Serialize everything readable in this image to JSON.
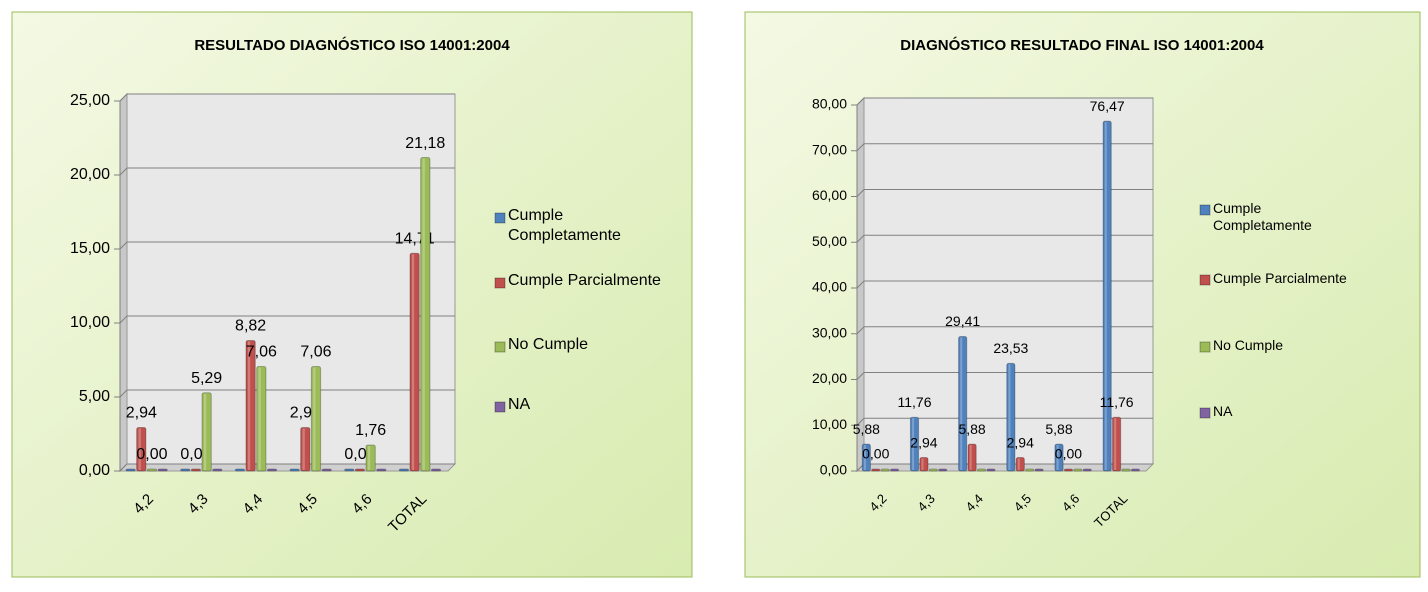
{
  "chart_data": [
    {
      "type": "bar",
      "title": "RESULTADO DIAGNÓSTICO ISO 14001:2004",
      "categories": [
        "4,2",
        "4,3",
        "4,4",
        "4,5",
        "4,6",
        "TOTAL"
      ],
      "series": [
        {
          "name": "Cumple Completamente",
          "color": "#4f81bd",
          "values": [
            0,
            0,
            0,
            0,
            0,
            0
          ]
        },
        {
          "name": "Cumple Parcialmente",
          "color": "#c0504d",
          "values": [
            2.94,
            0,
            8.82,
            2.94,
            0,
            14.71
          ],
          "value_labels": [
            "2,94",
            "0,00",
            "8,82",
            "2,94",
            "0,00",
            "14,71"
          ]
        },
        {
          "name": "No Cumple",
          "color": "#9bbb59",
          "values": [
            0,
            5.29,
            7.06,
            7.06,
            1.76,
            21.18
          ],
          "value_labels": [
            "0,00",
            "5,29",
            "7,06",
            "7,06",
            "1,76",
            "21,18"
          ]
        },
        {
          "name": "NA",
          "color": "#8064a2",
          "values": [
            0,
            0,
            0,
            0,
            0,
            0
          ]
        }
      ],
      "ylim": [
        0,
        25
      ],
      "yticks": [
        {
          "value": 0,
          "label": "0,00"
        },
        {
          "value": 5,
          "label": "5,00"
        },
        {
          "value": 10,
          "label": "10,00"
        },
        {
          "value": 15,
          "label": "15,00"
        },
        {
          "value": 20,
          "label": "20,00"
        },
        {
          "value": 25,
          "label": "25,00"
        }
      ],
      "grid": true,
      "legend": "right"
    },
    {
      "type": "bar",
      "title": "DIAGNÓSTICO RESULTADO FINAL ISO 14001:2004",
      "categories": [
        "4,2",
        "4,3",
        "4,4",
        "4,5",
        "4,6",
        "TOTAL"
      ],
      "series": [
        {
          "name": "Cumple Completamente",
          "color": "#4f81bd",
          "values": [
            5.88,
            11.76,
            29.41,
            23.53,
            5.88,
            76.47
          ],
          "value_labels": [
            "5,88",
            "11,76",
            "29,41",
            "23,53",
            "5,88",
            "76,47"
          ]
        },
        {
          "name": "Cumple Parcialmente",
          "color": "#c0504d",
          "values": [
            0,
            2.94,
            5.88,
            2.94,
            0,
            11.76
          ],
          "value_labels": [
            "0,00",
            "2,94",
            "5,88",
            "2,94",
            "0,00",
            "11,76"
          ]
        },
        {
          "name": "No Cumple",
          "color": "#9bbb59",
          "values": [
            0,
            0,
            0,
            0,
            0,
            0
          ]
        },
        {
          "name": "NA",
          "color": "#8064a2",
          "values": [
            0,
            0,
            0,
            0,
            0,
            0
          ]
        }
      ],
      "ylim": [
        0,
        80
      ],
      "yticks": [
        {
          "value": 0,
          "label": "0,00"
        },
        {
          "value": 10,
          "label": "10,00"
        },
        {
          "value": 20,
          "label": "20,00"
        },
        {
          "value": 30,
          "label": "30,00"
        },
        {
          "value": 40,
          "label": "40,00"
        },
        {
          "value": 50,
          "label": "50,00"
        },
        {
          "value": 60,
          "label": "60,00"
        },
        {
          "value": 70,
          "label": "70,00"
        },
        {
          "value": 80,
          "label": "80,00"
        }
      ],
      "grid": true,
      "legend": "right"
    }
  ]
}
